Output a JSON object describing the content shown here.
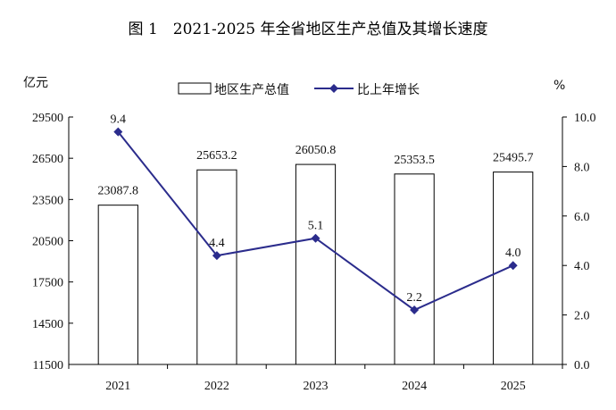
{
  "chart_data": {
    "type": "bar",
    "title": "图 1　2021-2025 年全省地区生产总值及其增长速度",
    "categories": [
      "2021",
      "2022",
      "2023",
      "2024",
      "2025"
    ],
    "series": [
      {
        "name": "地区生产总值",
        "type": "bar",
        "axis": "left",
        "values": [
          23087.8,
          25653.2,
          26050.8,
          25353.5,
          25495.7
        ],
        "labels": [
          "23087.8",
          "25653.2",
          "26050.8",
          "25353.5",
          "25495.7"
        ]
      },
      {
        "name": "比上年增长",
        "type": "line",
        "axis": "right",
        "values": [
          9.4,
          4.4,
          5.1,
          2.2,
          4.0
        ],
        "labels": [
          "9.4",
          "4.4",
          "5.1",
          "2.2",
          "4.0"
        ]
      }
    ],
    "ylabel_left": "亿元",
    "ylabel_right": "%",
    "ylim_left": [
      11500,
      29500
    ],
    "ylim_right": [
      0,
      10
    ],
    "yticks_left": [
      "11500",
      "14500",
      "17500",
      "20500",
      "23500",
      "26500",
      "29500"
    ],
    "yticks_right": [
      "0.0",
      "2.0",
      "4.0",
      "6.0",
      "8.0",
      "10.0"
    ],
    "legend_position": "top-center",
    "grid": false,
    "colors": {
      "bar_fill": "#ffffff",
      "bar_stroke": "#000000",
      "line": "#2b2c8c",
      "axis": "#000000"
    }
  }
}
